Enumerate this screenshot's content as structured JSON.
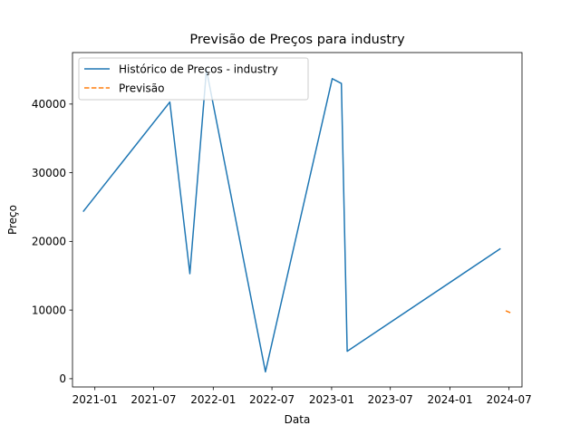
{
  "chart_data": {
    "type": "line",
    "title": "Previsão de Preços para industry",
    "xlabel": "Data",
    "ylabel": "Preço",
    "x_tick_labels": [
      "2021-01",
      "2021-07",
      "2022-01",
      "2022-07",
      "2023-01",
      "2023-07",
      "2024-01",
      "2024-07"
    ],
    "x_tick_dates": [
      "2021-01-01",
      "2021-07-01",
      "2022-01-01",
      "2022-07-01",
      "2023-01-01",
      "2023-07-01",
      "2024-01-01",
      "2024-07-01"
    ],
    "y_ticks": [
      0,
      10000,
      20000,
      30000,
      40000
    ],
    "y_tick_labels": [
      "0",
      "10000",
      "20000",
      "30000",
      "40000"
    ],
    "xlim": [
      "2020-10-24",
      "2024-08-10"
    ],
    "ylim": [
      -1200,
      47500
    ],
    "grid": false,
    "legend_position": "top-left",
    "series": [
      {
        "name": "Histórico de Preços - industry",
        "color": "#1f77b4",
        "style": "solid",
        "points": [
          {
            "x": "2020-11-27",
            "y": 24400
          },
          {
            "x": "2021-08-20",
            "y": 40300
          },
          {
            "x": "2021-10-21",
            "y": 15300
          },
          {
            "x": "2021-12-11",
            "y": 45000
          },
          {
            "x": "2022-06-11",
            "y": 1000
          },
          {
            "x": "2023-01-03",
            "y": 43700
          },
          {
            "x": "2023-01-31",
            "y": 43000
          },
          {
            "x": "2023-02-18",
            "y": 4000
          },
          {
            "x": "2024-06-03",
            "y": 18900
          }
        ]
      },
      {
        "name": "Previsão",
        "color": "#ff7f0e",
        "style": "dashed",
        "points": [
          {
            "x": "2024-06-21",
            "y": 9900
          },
          {
            "x": "2024-07-10",
            "y": 9500
          }
        ]
      }
    ]
  }
}
